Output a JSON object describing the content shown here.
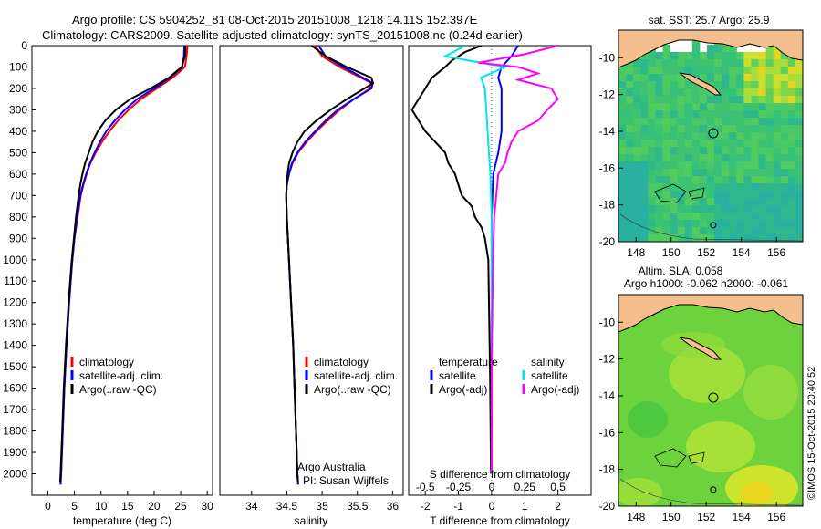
{
  "header": {
    "line1": "Argo profile: CS 5904252_81 08-Oct-2015 20151008_1218 14.11S 152.397E",
    "line2": "Climatology: CARS2009. Satellite-adjusted climatology: synTS_20151008.nc (0.24d earlier)"
  },
  "colors": {
    "climatology": "#ff0000",
    "satellite": "#0000ff",
    "argo": "#000000",
    "s_satellite": "#00e5e5",
    "s_argo": "#ff00ff",
    "land": "#f5be8e"
  },
  "chart_data": [
    {
      "id": "temperature-profile",
      "type": "line",
      "title": "",
      "xlabel": "temperature (deg C)",
      "ylabel": "",
      "xlim": [
        -3,
        31
      ],
      "ylim": [
        2100,
        0
      ],
      "xticks": [
        0,
        5,
        10,
        15,
        20,
        25,
        30
      ],
      "yticks": [
        0,
        100,
        200,
        300,
        400,
        500,
        600,
        700,
        800,
        900,
        1000,
        1100,
        1200,
        1300,
        1400,
        1500,
        1600,
        1700,
        1800,
        1900,
        2000
      ],
      "legend": [
        "climatology",
        "satellite-adj. clim.",
        "Argo(..raw -QC)"
      ],
      "legend_position": "lower-middle",
      "series": [
        {
          "name": "climatology",
          "depth": [
            0,
            50,
            100,
            150,
            200,
            250,
            300,
            350,
            400,
            450,
            500,
            550,
            600,
            650,
            700,
            800,
            900,
            1000,
            1100,
            1200,
            1400,
            1600,
            1800,
            2000,
            2050
          ],
          "values": [
            26.3,
            26.1,
            25.8,
            23.5,
            20.5,
            17.5,
            15.2,
            13.2,
            11.6,
            10.2,
            9.0,
            8.0,
            7.3,
            6.7,
            6.2,
            5.6,
            5.0,
            4.6,
            4.3,
            4.0,
            3.5,
            3.1,
            2.8,
            2.5,
            2.4
          ]
        },
        {
          "name": "satellite-adj. clim.",
          "depth": [
            0,
            50,
            100,
            150,
            200,
            250,
            300,
            350,
            400,
            450,
            500,
            550,
            600,
            650,
            700,
            800,
            900,
            1000,
            1100,
            1200,
            1400,
            1600,
            1800,
            2000,
            2050
          ],
          "values": [
            25.7,
            25.6,
            25.3,
            23.0,
            20.0,
            16.8,
            14.5,
            12.6,
            11.0,
            9.8,
            8.8,
            7.9,
            7.2,
            6.6,
            6.1,
            5.5,
            5.0,
            4.6,
            4.3,
            4.0,
            3.5,
            3.1,
            2.8,
            2.5,
            2.4
          ]
        },
        {
          "name": "Argo(..raw -QC)",
          "depth": [
            0,
            50,
            100,
            150,
            200,
            250,
            300,
            350,
            400,
            450,
            500,
            550,
            600,
            650,
            700,
            800,
            900,
            1000,
            1100,
            1200,
            1400,
            1600,
            1800,
            2000,
            2040
          ],
          "values": [
            25.9,
            25.8,
            25.2,
            22.8,
            19.3,
            15.5,
            12.8,
            10.8,
            9.4,
            8.4,
            7.7,
            7.0,
            6.5,
            6.1,
            5.8,
            5.3,
            4.9,
            4.5,
            4.2,
            3.9,
            3.4,
            3.0,
            2.7,
            2.4,
            2.3
          ]
        }
      ]
    },
    {
      "id": "salinity-profile",
      "type": "line",
      "title": "",
      "xlabel": "salinity",
      "ylabel": "",
      "xlim": [
        33.55,
        36.15
      ],
      "ylim": [
        2100,
        0
      ],
      "xticks": [
        34,
        34.5,
        35,
        35.5,
        36
      ],
      "yticks": [],
      "legend": [
        "climatology",
        "satellite-adj. clim.",
        "Argo(..raw -QC)"
      ],
      "legend_position": "lower-right",
      "annotations": [
        "Argo Australia",
        "PI: Susan Wijffels"
      ],
      "series": [
        {
          "name": "climatology",
          "depth": [
            0,
            50,
            100,
            150,
            175,
            200,
            250,
            300,
            350,
            400,
            450,
            500,
            550,
            600,
            650,
            700,
            800,
            1000,
            1200,
            1400,
            1600,
            1800,
            2000,
            2050
          ],
          "values": [
            34.9,
            35.0,
            35.25,
            35.55,
            35.7,
            35.68,
            35.45,
            35.25,
            35.08,
            34.92,
            34.78,
            34.66,
            34.58,
            34.53,
            34.5,
            34.49,
            34.5,
            34.53,
            34.56,
            34.59,
            34.61,
            34.63,
            34.65,
            34.66
          ]
        },
        {
          "name": "satellite-adj. clim.",
          "depth": [
            0,
            50,
            100,
            150,
            175,
            200,
            250,
            300,
            350,
            400,
            450,
            500,
            550,
            600,
            650,
            700,
            800,
            1000,
            1200,
            1400,
            1600,
            1800,
            2000,
            2050
          ],
          "values": [
            34.95,
            35.05,
            35.3,
            35.58,
            35.72,
            35.7,
            35.45,
            35.22,
            35.05,
            34.9,
            34.76,
            34.65,
            34.57,
            34.53,
            34.5,
            34.49,
            34.5,
            34.53,
            34.56,
            34.59,
            34.61,
            34.63,
            34.65,
            34.66
          ]
        },
        {
          "name": "Argo(..raw -QC)",
          "depth": [
            0,
            50,
            100,
            150,
            175,
            200,
            250,
            300,
            350,
            400,
            450,
            500,
            550,
            600,
            650,
            700,
            800,
            1000,
            1200,
            1400,
            1600,
            1800,
            2000,
            2040
          ],
          "values": [
            34.85,
            35.05,
            35.35,
            35.7,
            35.72,
            35.6,
            35.35,
            35.12,
            34.92,
            34.75,
            34.65,
            34.58,
            34.53,
            34.51,
            34.5,
            34.49,
            34.5,
            34.53,
            34.56,
            34.59,
            34.61,
            34.63,
            34.65,
            34.66
          ]
        }
      ]
    },
    {
      "id": "difference-profile",
      "type": "line",
      "title": "",
      "xlabel": "T difference from climatology",
      "x2label": "S difference from climatology",
      "xlim": [
        -2.5,
        3.0
      ],
      "ylim": [
        2100,
        0
      ],
      "xticks": [
        -2,
        -1,
        0,
        1,
        2
      ],
      "x2ticks": [
        -0.5,
        -0.25,
        0,
        0.25,
        0.5
      ],
      "x2tick_labels": [
        "-0.5",
        "-0.25",
        "0",
        "0.25",
        "0.5"
      ],
      "yticks": [],
      "legend_titles": [
        "temperature",
        "salinity"
      ],
      "legend": [
        "satellite",
        "Argo(-adj)",
        "satellite",
        "Argo(-adj)"
      ],
      "legend_position": "lower-middle",
      "series": [
        {
          "name": "T satellite",
          "depth": [
            0,
            50,
            100,
            150,
            200,
            300,
            400,
            500,
            600,
            800,
            1000,
            1500,
            2000
          ],
          "values": [
            0.8,
            0.6,
            0.3,
            0.2,
            0.3,
            0.3,
            0.3,
            0.2,
            0.05,
            0.0,
            0.0,
            0.0,
            0.0
          ]
        },
        {
          "name": "T Argo(-adj)",
          "depth": [
            0,
            30,
            70,
            100,
            150,
            200,
            250,
            300,
            350,
            400,
            450,
            500,
            550,
            600,
            650,
            700,
            750,
            800,
            850,
            900,
            1000,
            1200,
            1500,
            1800,
            2000
          ],
          "values": [
            -0.3,
            -0.8,
            -1.2,
            -1.4,
            -1.8,
            -2.0,
            -2.2,
            -2.4,
            -2.2,
            -2.0,
            -1.7,
            -1.4,
            -1.3,
            -1.1,
            -1.0,
            -0.9,
            -0.6,
            -0.5,
            -0.3,
            -0.2,
            -0.1,
            -0.08,
            -0.05,
            -0.03,
            -0.02
          ]
        },
        {
          "name": "S satellite",
          "depth": [
            0,
            50,
            100,
            150,
            200,
            300,
            400,
            500,
            600,
            800,
            1000,
            1500,
            2000
          ],
          "values": [
            -0.2,
            -0.35,
            0.1,
            -0.08,
            -0.05,
            -0.04,
            -0.03,
            -0.02,
            -0.01,
            0.0,
            0.0,
            0.0,
            0.0
          ]
        },
        {
          "name": "S Argo(-adj)",
          "depth": [
            0,
            40,
            80,
            100,
            130,
            160,
            200,
            250,
            300,
            350,
            400,
            450,
            500,
            550,
            600,
            800,
            1000,
            1500,
            2000
          ],
          "values": [
            0.5,
            0.25,
            -0.1,
            0.2,
            0.35,
            0.2,
            0.45,
            0.5,
            0.42,
            0.35,
            0.2,
            0.15,
            0.12,
            0.1,
            0.05,
            0.02,
            0.01,
            0.0,
            0.0
          ]
        }
      ]
    },
    {
      "id": "sst-map",
      "type": "heatmap",
      "title": "sat. SST: 25.7 Argo: 25.9",
      "xlim": [
        147,
        157.5
      ],
      "ylim": [
        -20,
        -8.5
      ],
      "xticks": [
        148,
        150,
        152,
        154,
        156
      ],
      "yticks": [
        -10,
        -12,
        -14,
        -16,
        -18,
        -20
      ],
      "markers": [
        {
          "lon": 152.4,
          "lat": -14.1
        },
        {
          "lon": 152.4,
          "lat": -19.1
        }
      ]
    },
    {
      "id": "sla-map",
      "type": "heatmap",
      "title": "Altim. SLA: 0.058",
      "subtitle": "Argo h1000: -0.062 h2000: -0.061",
      "xlim": [
        147,
        157.5
      ],
      "ylim": [
        -20,
        -8.5
      ],
      "xticks": [
        148,
        150,
        152,
        154,
        156
      ],
      "yticks": [
        -10,
        -12,
        -14,
        -16,
        -18,
        -20
      ],
      "markers": [
        {
          "lon": 152.4,
          "lat": -14.1
        },
        {
          "lon": 152.4,
          "lat": -19.1
        }
      ]
    }
  ],
  "footer": {
    "credit": "©IMOS 15-Oct-2015 20:40:52"
  }
}
